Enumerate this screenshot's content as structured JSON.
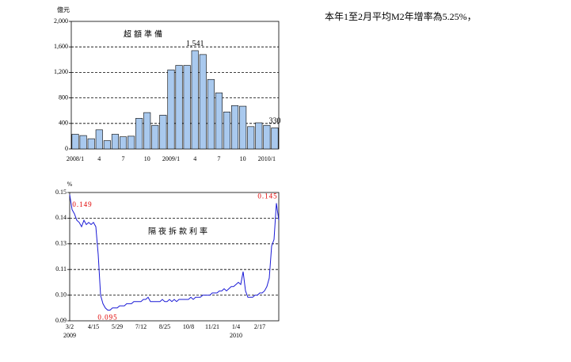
{
  "note": "本年1至2月平均M2年增率為5.25%，",
  "chart_data": [
    {
      "type": "bar",
      "title": "超額準備",
      "y_label": "億元",
      "color": "#a9c9ee",
      "grid": true,
      "categories": [
        "2008/1",
        null,
        null,
        "4",
        null,
        null,
        "7",
        null,
        null,
        "10",
        null,
        null,
        "2009/1",
        null,
        null,
        "4",
        null,
        null,
        "7",
        null,
        null,
        "10",
        null,
        null,
        "2010/1",
        null
      ],
      "values": [
        230,
        210,
        160,
        300,
        130,
        230,
        190,
        200,
        480,
        570,
        370,
        530,
        1240,
        1310,
        1310,
        1541,
        1480,
        1090,
        880,
        580,
        680,
        670,
        350,
        410,
        370,
        330
      ],
      "value_labels": [
        null,
        null,
        null,
        null,
        null,
        null,
        null,
        null,
        null,
        null,
        null,
        null,
        null,
        null,
        null,
        "1,541",
        null,
        null,
        null,
        null,
        null,
        null,
        null,
        null,
        null,
        "330"
      ],
      "ylim": [
        0,
        2000
      ],
      "yticks": [
        0,
        400,
        800,
        {
          "value": 1200,
          "label": "1,200"
        },
        {
          "value": 1600,
          "label": "1,600"
        },
        {
          "value": 2000,
          "label": "2,000"
        }
      ]
    },
    {
      "type": "line",
      "title": "隔夜拆款利率",
      "y_label": "%",
      "color": "#1a1ad6",
      "label_color": "#e00000",
      "grid": true,
      "categories": [
        "3/2",
        null,
        null,
        null,
        null,
        null,
        null,
        null,
        null,
        null,
        "4/15",
        null,
        null,
        null,
        null,
        null,
        null,
        null,
        null,
        null,
        "5/29",
        null,
        null,
        null,
        null,
        null,
        null,
        null,
        null,
        null,
        "7/12",
        null,
        null,
        null,
        null,
        null,
        null,
        null,
        null,
        null,
        "8/25",
        null,
        null,
        null,
        null,
        null,
        null,
        null,
        null,
        null,
        "10/8",
        null,
        null,
        null,
        null,
        null,
        null,
        null,
        null,
        null,
        "11/21",
        null,
        null,
        null,
        null,
        null,
        null,
        null,
        null,
        null,
        "1/4",
        null,
        null,
        null,
        null,
        null,
        null,
        null,
        null,
        null,
        "2/17",
        null,
        null,
        null,
        null,
        null,
        null,
        null,
        null
      ],
      "category_sublabels": [
        "2009",
        null,
        null,
        null,
        null,
        null,
        null,
        null,
        null,
        null,
        null,
        null,
        null,
        null,
        null,
        null,
        null,
        null,
        null,
        null,
        null,
        null,
        null,
        null,
        null,
        null,
        null,
        null,
        null,
        null,
        null,
        null,
        null,
        null,
        null,
        null,
        null,
        null,
        null,
        null,
        null,
        null,
        null,
        null,
        null,
        null,
        null,
        null,
        null,
        null,
        null,
        null,
        null,
        null,
        null,
        null,
        null,
        null,
        null,
        null,
        null,
        null,
        null,
        null,
        null,
        null,
        null,
        null,
        null,
        null,
        "2010",
        null,
        null,
        null,
        null,
        null,
        null,
        null,
        null,
        null,
        null,
        null,
        null,
        null,
        null,
        null,
        null,
        null,
        null
      ],
      "values": [
        0.149,
        0.142,
        0.14,
        0.137,
        0.136,
        0.134,
        0.137,
        0.135,
        0.136,
        0.135,
        0.136,
        0.134,
        0.121,
        0.102,
        0.098,
        0.096,
        0.095,
        0.095,
        0.096,
        0.096,
        0.096,
        0.097,
        0.097,
        0.097,
        0.098,
        0.098,
        0.098,
        0.099,
        0.099,
        0.099,
        0.099,
        0.1,
        0.1,
        0.101,
        0.099,
        0.099,
        0.099,
        0.099,
        0.099,
        0.1,
        0.099,
        0.099,
        0.1,
        0.099,
        0.1,
        0.099,
        0.1,
        0.1,
        0.1,
        0.1,
        0.1,
        0.101,
        0.1,
        0.101,
        0.101,
        0.101,
        0.102,
        0.102,
        0.102,
        0.102,
        0.103,
        0.103,
        0.103,
        0.104,
        0.104,
        0.105,
        0.104,
        0.105,
        0.106,
        0.106,
        0.107,
        0.108,
        0.107,
        0.113,
        0.104,
        0.101,
        0.101,
        0.101,
        0.102,
        0.102,
        0.103,
        0.103,
        0.104,
        0.106,
        0.11,
        0.125,
        0.128,
        0.145,
        0.137
      ],
      "value_labels": [
        "0.149",
        null,
        null,
        null,
        null,
        null,
        null,
        null,
        null,
        null,
        null,
        null,
        null,
        null,
        null,
        null,
        "0.095",
        null,
        null,
        null,
        null,
        null,
        null,
        null,
        null,
        null,
        null,
        null,
        null,
        null,
        null,
        null,
        null,
        null,
        null,
        null,
        null,
        null,
        null,
        null,
        null,
        null,
        null,
        null,
        null,
        null,
        null,
        null,
        null,
        null,
        null,
        null,
        null,
        null,
        null,
        null,
        null,
        null,
        null,
        null,
        null,
        null,
        null,
        null,
        null,
        null,
        null,
        null,
        null,
        null,
        null,
        null,
        null,
        null,
        null,
        null,
        null,
        null,
        null,
        null,
        null,
        null,
        null,
        null,
        null,
        null,
        null,
        "0.145",
        null
      ],
      "ylim": [
        0.09,
        0.15
      ],
      "yticks": [
        {
          "value": 0.09,
          "label": "0.09"
        },
        {
          "value": 0.102,
          "label": "0.10"
        },
        {
          "value": 0.114,
          "label": "0.11"
        },
        {
          "value": 0.126,
          "label": "0.13"
        },
        {
          "value": 0.138,
          "label": "0.14"
        },
        {
          "value": 0.15,
          "label": "0.15"
        }
      ]
    }
  ]
}
